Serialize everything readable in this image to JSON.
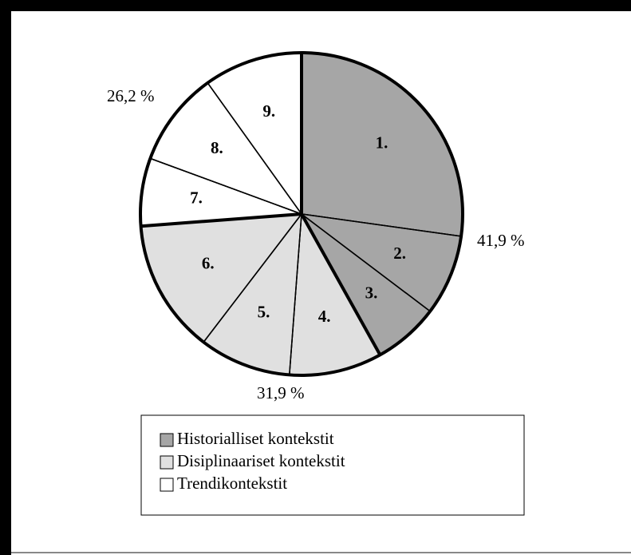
{
  "chart_data": {
    "type": "pie",
    "groups": [
      {
        "name": "Historialliset kontekstit",
        "color": "#a6a6a6",
        "value": 41.9,
        "value_label": "41,9 %"
      },
      {
        "name": "Disiplinaariset kontekstit",
        "color": "#e0e0e0",
        "value": 31.9,
        "value_label": "31,9 %"
      },
      {
        "name": "Trendikontekstit",
        "color": "#ffffff",
        "value": 26.2,
        "value_label": "26,2 %"
      }
    ],
    "slices": [
      {
        "label": "1.",
        "group": 0,
        "value": 27.2
      },
      {
        "label": "2.",
        "group": 0,
        "value": 8.1
      },
      {
        "label": "3.",
        "group": 0,
        "value": 6.6
      },
      {
        "label": "4.",
        "group": 1,
        "value": 9.3
      },
      {
        "label": "5.",
        "group": 1,
        "value": 9.2
      },
      {
        "label": "6.",
        "group": 1,
        "value": 13.4
      },
      {
        "label": "7.",
        "group": 2,
        "value": 6.8
      },
      {
        "label": "8.",
        "group": 2,
        "value": 9.5
      },
      {
        "label": "9.",
        "group": 2,
        "value": 9.9
      }
    ]
  }
}
